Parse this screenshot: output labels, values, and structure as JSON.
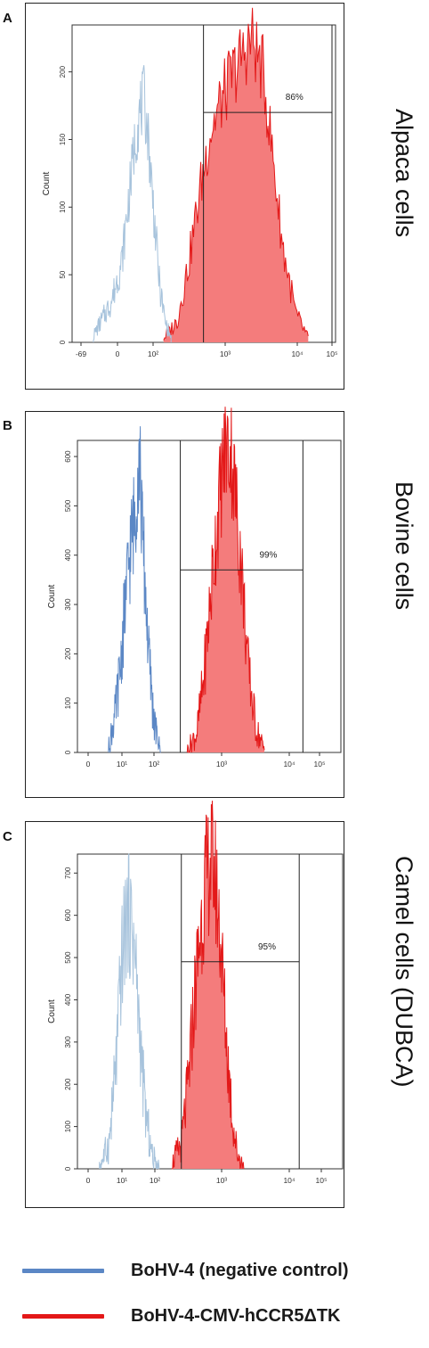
{
  "colors": {
    "control": "#5b87c5",
    "control_light": "#a7c3dc",
    "infected": "#e31818",
    "infected_fill": "#f47c7c"
  },
  "chart_data": [
    {
      "type": "area",
      "panel": "A",
      "side_label": "Alpaca cells",
      "ylabel": "Count",
      "xscale": "log",
      "xlim": [
        -69,
        100000
      ],
      "ylim": [
        0,
        230
      ],
      "xticks": [
        "-69",
        "0",
        "10²",
        "10³",
        "10⁴",
        "10⁵"
      ],
      "yticks": [
        "0",
        "50",
        "100",
        "150",
        "200"
      ],
      "gate_label": "86%",
      "gate": {
        "x_start": 700,
        "x_end": 100000,
        "marker_y": 170
      },
      "series": [
        {
          "role": "negative-control",
          "x": [
            10,
            20,
            30,
            40,
            50,
            60,
            70,
            80,
            90,
            110,
            130,
            160,
            200
          ],
          "y": [
            5,
            30,
            60,
            110,
            150,
            170,
            180,
            160,
            130,
            80,
            40,
            15,
            3
          ]
        },
        {
          "role": "infected",
          "x": [
            150,
            250,
            400,
            600,
            900,
            1300,
            2000,
            3000,
            4500,
            7000,
            10000,
            15000,
            25000,
            40000
          ],
          "y": [
            3,
            15,
            60,
            110,
            155,
            175,
            195,
            210,
            225,
            200,
            140,
            70,
            20,
            3
          ]
        }
      ]
    },
    {
      "type": "area",
      "panel": "B",
      "side_label": "Bovine cells",
      "ylabel": "Count",
      "xscale": "log",
      "xlim": [
        0,
        100000
      ],
      "ylim": [
        0,
        620
      ],
      "xticks": [
        "0",
        "10¹",
        "10²",
        "10³",
        "10⁴",
        "10⁵"
      ],
      "yticks": [
        "0",
        "100",
        "200",
        "300",
        "400",
        "500",
        "600"
      ],
      "gate_label": "99%",
      "gate": {
        "x_start": 300,
        "x_end": 50000,
        "marker_y": 370
      },
      "series": [
        {
          "role": "negative-control",
          "x": [
            15,
            20,
            25,
            30,
            35,
            40,
            45,
            50,
            55,
            60,
            70,
            80,
            100,
            130
          ],
          "y": [
            10,
            80,
            180,
            300,
            380,
            440,
            480,
            560,
            600,
            470,
            330,
            200,
            60,
            5
          ]
        },
        {
          "role": "infected",
          "x": [
            400,
            600,
            800,
            1000,
            1300,
            1700,
            2000,
            2500,
            3000,
            4000,
            5000,
            7000,
            10000
          ],
          "y": [
            5,
            40,
            150,
            280,
            430,
            560,
            620,
            610,
            520,
            350,
            180,
            50,
            5
          ]
        }
      ]
    },
    {
      "type": "area",
      "panel": "C",
      "side_label": "Camel cells (DUBCA)",
      "ylabel": "Count",
      "xscale": "log",
      "xlim": [
        0,
        100000
      ],
      "ylim": [
        0,
        730
      ],
      "xticks": [
        "0",
        "10¹",
        "10²",
        "10³",
        "10⁴",
        "10⁵"
      ],
      "yticks": [
        "0",
        "100",
        "200",
        "300",
        "400",
        "500",
        "600",
        "700"
      ],
      "gate_label": "95%",
      "gate": {
        "x_start": 300,
        "x_end": 40000,
        "marker_y": 490
      },
      "series": [
        {
          "role": "negative-control",
          "x": [
            10,
            15,
            20,
            25,
            30,
            35,
            40,
            45,
            50,
            60,
            70,
            90,
            120
          ],
          "y": [
            5,
            60,
            250,
            480,
            590,
            600,
            560,
            480,
            380,
            220,
            120,
            30,
            5
          ]
        },
        {
          "role": "infected",
          "x": [
            200,
            300,
            400,
            500,
            650,
            800,
            1000,
            1200,
            1500,
            2000,
            2500,
            3000,
            4000
          ],
          "y": [
            10,
            60,
            200,
            380,
            550,
            670,
            730,
            700,
            560,
            280,
            120,
            40,
            5
          ]
        }
      ]
    }
  ],
  "legend": [
    {
      "label": "BoHV-4 (negative control)",
      "color": "#5b87c5"
    },
    {
      "label": "BoHV-4-CMV-hCCR5ΔTK",
      "color": "#e31818"
    }
  ]
}
